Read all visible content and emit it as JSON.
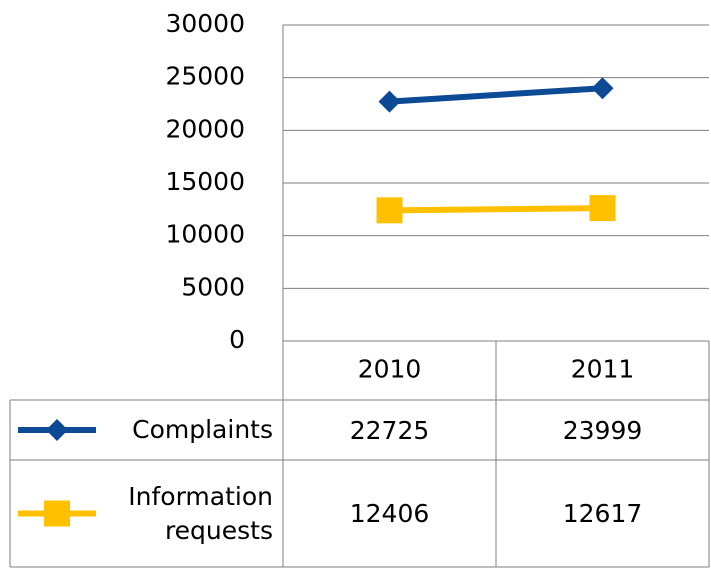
{
  "chart_data": {
    "type": "line",
    "categories": [
      "2010",
      "2011"
    ],
    "series": [
      {
        "name": "Complaints",
        "color": "#0d4a96",
        "marker": "diamond",
        "values": [
          22725,
          23999
        ]
      },
      {
        "name": "Information requests",
        "color": "#ffc000",
        "marker": "square",
        "values": [
          12406,
          12617
        ]
      }
    ],
    "ylim": [
      0,
      30000
    ],
    "yticks": [
      0,
      5000,
      10000,
      15000,
      20000,
      25000,
      30000
    ],
    "grid": true,
    "data_table": true
  }
}
